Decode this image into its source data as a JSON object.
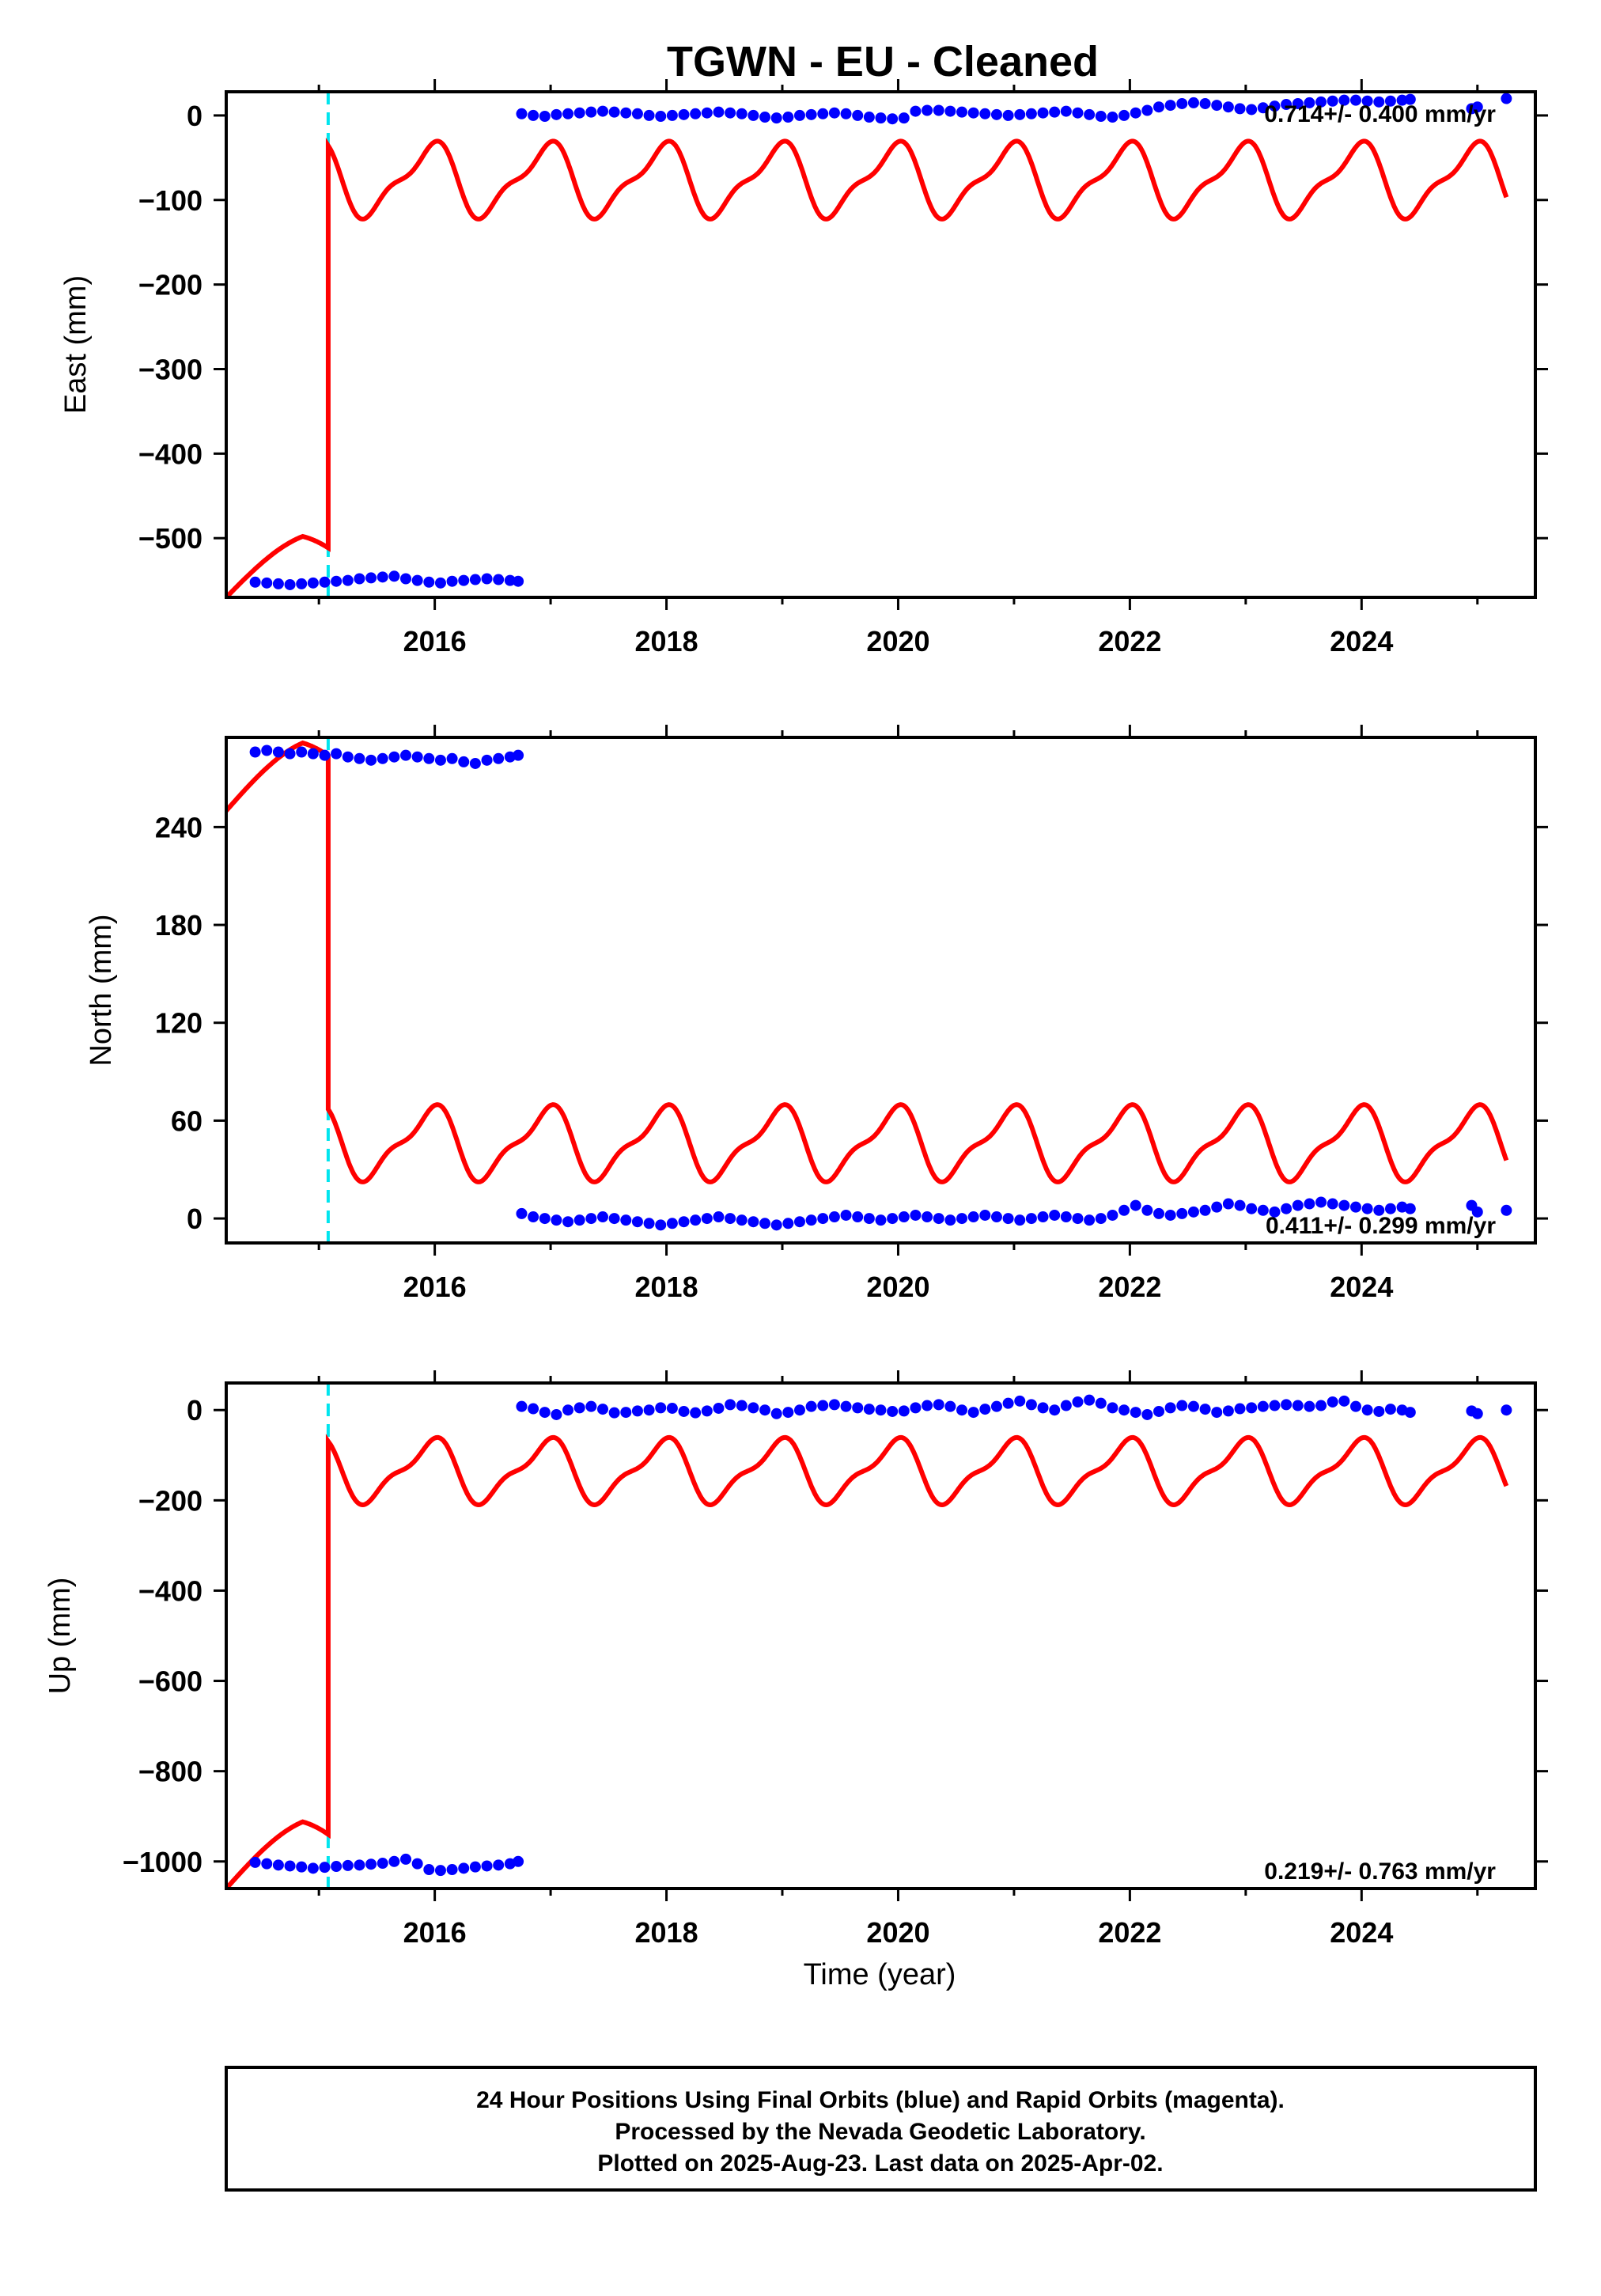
{
  "title": "TGWN  - EU - Cleaned",
  "footer": {
    "lines": [
      "24 Hour Positions Using Final Orbits (blue) and Rapid Orbits (magenta).",
      "Processed by the Nevada Geodetic Laboratory.",
      "Plotted on 2025-Aug-23. Last data on 2025-Apr-02."
    ]
  },
  "colors": {
    "final_orbit_points": "#0000ff",
    "model_curve": "#ff0000",
    "equipment_change_line": "#00e5ee",
    "frame": "#000000"
  },
  "chart_data": [
    {
      "type": "scatter",
      "component": "East",
      "ylabel": "East (mm)",
      "xlabel": "",
      "xlim": [
        2014.2,
        2025.5
      ],
      "ylim": [
        -570,
        28
      ],
      "xticks": [
        2016,
        2018,
        2020,
        2022,
        2024
      ],
      "yticks": [
        0,
        -100,
        -200,
        -300,
        -400,
        -500
      ],
      "rate_text": "0.714+/- 0.400 mm/yr",
      "rate_position": "top-right",
      "equipment_change_x": 2015.08,
      "series": [
        {
          "role": "daily positions",
          "color": "#0000ff",
          "x": [
            2014.45,
            2014.55,
            2014.65,
            2014.75,
            2014.85,
            2014.95,
            2015.05,
            2015.15,
            2015.25,
            2015.35,
            2015.45,
            2015.55,
            2015.65,
            2015.75,
            2015.85,
            2015.95,
            2016.05,
            2016.15,
            2016.25,
            2016.35,
            2016.45,
            2016.55,
            2016.65,
            2016.72,
            2016.75,
            2016.85,
            2016.95,
            2017.05,
            2017.15,
            2017.25,
            2017.35,
            2017.45,
            2017.55,
            2017.65,
            2017.75,
            2017.85,
            2017.95,
            2018.05,
            2018.15,
            2018.25,
            2018.35,
            2018.45,
            2018.55,
            2018.65,
            2018.75,
            2018.85,
            2018.95,
            2019.05,
            2019.15,
            2019.25,
            2019.35,
            2019.45,
            2019.55,
            2019.65,
            2019.75,
            2019.85,
            2019.95,
            2020.05,
            2020.15,
            2020.25,
            2020.35,
            2020.45,
            2020.55,
            2020.65,
            2020.75,
            2020.85,
            2020.95,
            2021.05,
            2021.15,
            2021.25,
            2021.35,
            2021.45,
            2021.55,
            2021.65,
            2021.75,
            2021.85,
            2021.95,
            2022.05,
            2022.15,
            2022.25,
            2022.35,
            2022.45,
            2022.55,
            2022.65,
            2022.75,
            2022.85,
            2022.95,
            2023.05,
            2023.15,
            2023.25,
            2023.35,
            2023.45,
            2023.55,
            2023.65,
            2023.75,
            2023.85,
            2023.95,
            2024.05,
            2024.15,
            2024.25,
            2024.35,
            2024.42,
            2024.95,
            2025.0,
            2025.25
          ],
          "y": [
            -552,
            -553,
            -554,
            -555,
            -554,
            -553,
            -552,
            -551,
            -550,
            -548,
            -547,
            -546,
            -545,
            -548,
            -550,
            -552,
            -553,
            -551,
            -550,
            -549,
            -548,
            -549,
            -550,
            -551,
            2,
            0,
            -1,
            1,
            2,
            3,
            4,
            5,
            4,
            3,
            2,
            0,
            -1,
            0,
            1,
            2,
            3,
            4,
            3,
            2,
            0,
            -2,
            -3,
            -2,
            0,
            1,
            2,
            3,
            2,
            0,
            -2,
            -3,
            -4,
            -3,
            5,
            6,
            6,
            5,
            4,
            3,
            2,
            1,
            0,
            1,
            2,
            3,
            4,
            5,
            3,
            1,
            -1,
            -2,
            0,
            3,
            6,
            10,
            12,
            14,
            15,
            14,
            12,
            10,
            8,
            7,
            9,
            11,
            13,
            14,
            15,
            16,
            17,
            18,
            18,
            17,
            16,
            17,
            18,
            19,
            8,
            10,
            20
          ]
        },
        {
          "role": "model",
          "color": "#ff0000",
          "description": "offset at equipment change then annual/semiannual seasonal fit",
          "peak_value": -30,
          "trough_value": -135,
          "pre_jump_range": [
            -570,
            -492
          ]
        }
      ]
    },
    {
      "type": "scatter",
      "component": "North",
      "ylabel": "North (mm)",
      "xlabel": "",
      "xlim": [
        2014.2,
        2025.5
      ],
      "ylim": [
        -15,
        295
      ],
      "xticks": [
        2016,
        2018,
        2020,
        2022,
        2024
      ],
      "yticks": [
        0,
        60,
        120,
        180,
        240
      ],
      "rate_text": "0.411+/- 0.299 mm/yr",
      "rate_position": "bottom-right",
      "equipment_change_x": 2015.08,
      "series": [
        {
          "role": "daily positions",
          "color": "#0000ff",
          "x": [
            2014.45,
            2014.55,
            2014.65,
            2014.75,
            2014.85,
            2014.95,
            2015.05,
            2015.15,
            2015.25,
            2015.35,
            2015.45,
            2015.55,
            2015.65,
            2015.75,
            2015.85,
            2015.95,
            2016.05,
            2016.15,
            2016.25,
            2016.35,
            2016.45,
            2016.55,
            2016.65,
            2016.72,
            2016.75,
            2016.85,
            2016.95,
            2017.05,
            2017.15,
            2017.25,
            2017.35,
            2017.45,
            2017.55,
            2017.65,
            2017.75,
            2017.85,
            2017.95,
            2018.05,
            2018.15,
            2018.25,
            2018.35,
            2018.45,
            2018.55,
            2018.65,
            2018.75,
            2018.85,
            2018.95,
            2019.05,
            2019.15,
            2019.25,
            2019.35,
            2019.45,
            2019.55,
            2019.65,
            2019.75,
            2019.85,
            2019.95,
            2020.05,
            2020.15,
            2020.25,
            2020.35,
            2020.45,
            2020.55,
            2020.65,
            2020.75,
            2020.85,
            2020.95,
            2021.05,
            2021.15,
            2021.25,
            2021.35,
            2021.45,
            2021.55,
            2021.65,
            2021.75,
            2021.85,
            2021.95,
            2022.05,
            2022.15,
            2022.25,
            2022.35,
            2022.45,
            2022.55,
            2022.65,
            2022.75,
            2022.85,
            2022.95,
            2023.05,
            2023.15,
            2023.25,
            2023.35,
            2023.45,
            2023.55,
            2023.65,
            2023.75,
            2023.85,
            2023.95,
            2024.05,
            2024.15,
            2024.25,
            2024.35,
            2024.42,
            2024.95,
            2025.0,
            2025.25
          ],
          "y": [
            286,
            287,
            286,
            285,
            286,
            285,
            284,
            285,
            283,
            282,
            281,
            282,
            283,
            284,
            283,
            282,
            281,
            282,
            280,
            279,
            281,
            282,
            283,
            284,
            3,
            1,
            0,
            -1,
            -2,
            -1,
            0,
            1,
            0,
            -1,
            -2,
            -3,
            -4,
            -3,
            -2,
            -1,
            0,
            1,
            0,
            -1,
            -2,
            -3,
            -4,
            -3,
            -2,
            -1,
            0,
            1,
            2,
            1,
            0,
            -1,
            0,
            1,
            2,
            1,
            0,
            -1,
            0,
            1,
            2,
            1,
            0,
            -1,
            0,
            1,
            2,
            1,
            0,
            -1,
            0,
            2,
            5,
            8,
            5,
            3,
            2,
            3,
            4,
            5,
            7,
            9,
            8,
            6,
            5,
            4,
            6,
            8,
            9,
            10,
            9,
            8,
            7,
            6,
            5,
            6,
            7,
            6,
            8,
            4,
            5
          ]
        },
        {
          "role": "model",
          "color": "#ff0000",
          "description": "offset at equipment change then annual/semiannual seasonal fit",
          "peak_value": 70,
          "trough_value": 16,
          "pre_jump_range": [
            250,
            295
          ]
        }
      ]
    },
    {
      "type": "scatter",
      "component": "Up",
      "ylabel": "Up (mm)",
      "xlabel": "Time (year)",
      "xlim": [
        2014.2,
        2025.5
      ],
      "ylim": [
        -1060,
        60
      ],
      "xticks": [
        2016,
        2018,
        2020,
        2022,
        2024
      ],
      "yticks": [
        0,
        -200,
        -400,
        -600,
        -800,
        -1000
      ],
      "rate_text": "0.219+/- 0.763 mm/yr",
      "rate_position": "bottom-right",
      "equipment_change_x": 2015.08,
      "series": [
        {
          "role": "daily positions",
          "color": "#0000ff",
          "x": [
            2014.45,
            2014.55,
            2014.65,
            2014.75,
            2014.85,
            2014.95,
            2015.05,
            2015.15,
            2015.25,
            2015.35,
            2015.45,
            2015.55,
            2015.65,
            2015.75,
            2015.85,
            2015.95,
            2016.05,
            2016.15,
            2016.25,
            2016.35,
            2016.45,
            2016.55,
            2016.65,
            2016.72,
            2016.75,
            2016.85,
            2016.95,
            2017.05,
            2017.15,
            2017.25,
            2017.35,
            2017.45,
            2017.55,
            2017.65,
            2017.75,
            2017.85,
            2017.95,
            2018.05,
            2018.15,
            2018.25,
            2018.35,
            2018.45,
            2018.55,
            2018.65,
            2018.75,
            2018.85,
            2018.95,
            2019.05,
            2019.15,
            2019.25,
            2019.35,
            2019.45,
            2019.55,
            2019.65,
            2019.75,
            2019.85,
            2019.95,
            2020.05,
            2020.15,
            2020.25,
            2020.35,
            2020.45,
            2020.55,
            2020.65,
            2020.75,
            2020.85,
            2020.95,
            2021.05,
            2021.15,
            2021.25,
            2021.35,
            2021.45,
            2021.55,
            2021.65,
            2021.75,
            2021.85,
            2021.95,
            2022.05,
            2022.15,
            2022.25,
            2022.35,
            2022.45,
            2022.55,
            2022.65,
            2022.75,
            2022.85,
            2022.95,
            2023.05,
            2023.15,
            2023.25,
            2023.35,
            2023.45,
            2023.55,
            2023.65,
            2023.75,
            2023.85,
            2023.95,
            2024.05,
            2024.15,
            2024.25,
            2024.35,
            2024.42,
            2024.95,
            2025.0,
            2025.25
          ],
          "y": [
            -1002,
            -1005,
            -1008,
            -1010,
            -1012,
            -1015,
            -1013,
            -1011,
            -1009,
            -1008,
            -1006,
            -1004,
            -1000,
            -995,
            -1005,
            -1018,
            -1020,
            -1018,
            -1015,
            -1012,
            -1010,
            -1008,
            -1005,
            -1000,
            8,
            3,
            -5,
            -10,
            0,
            5,
            8,
            2,
            -6,
            -5,
            -2,
            0,
            5,
            4,
            -3,
            -6,
            -2,
            4,
            12,
            10,
            5,
            0,
            -8,
            -5,
            0,
            8,
            10,
            12,
            8,
            5,
            2,
            0,
            -3,
            -2,
            5,
            10,
            12,
            8,
            0,
            -5,
            2,
            8,
            15,
            20,
            12,
            5,
            0,
            10,
            18,
            22,
            15,
            5,
            0,
            -5,
            -10,
            -3,
            5,
            10,
            8,
            2,
            -5,
            -2,
            3,
            5,
            8,
            10,
            12,
            10,
            8,
            10,
            18,
            20,
            8,
            0,
            -3,
            2,
            0,
            -5,
            -2,
            -8,
            0
          ]
        },
        {
          "role": "model",
          "color": "#ff0000",
          "description": "offset at equipment change then annual/semiannual seasonal fit",
          "peak_value": -60,
          "trough_value": -230,
          "pre_jump_range": [
            -1060,
            -900
          ]
        }
      ]
    }
  ]
}
